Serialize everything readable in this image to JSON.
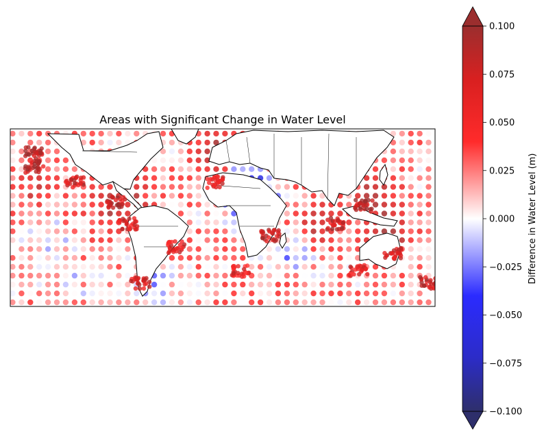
{
  "chart_data": {
    "type": "scatter",
    "title": "Areas with Significant Change in Water Level",
    "xlabel": "",
    "ylabel": "",
    "colorbar": {
      "label": "Difference in Water Level (m)",
      "range": [
        -0.1,
        0.1
      ],
      "extend": "both",
      "colormap": "seismic",
      "ticks": [
        0.1,
        0.075,
        0.05,
        0.025,
        0.0,
        -0.025,
        -0.05,
        -0.075,
        -0.1
      ],
      "tick_labels": [
        "0.100",
        "0.075",
        "0.050",
        "0.025",
        "0.000",
        "−0.025",
        "−0.050",
        "−0.075",
        "−0.100"
      ]
    },
    "map_extent": {
      "lon": [
        -180,
        180
      ],
      "lat": [
        -60,
        90
      ]
    },
    "grid_spacing_deg": 7.5,
    "grid": false,
    "regional_anomalies": [
      {
        "lon": 20,
        "lat": 35,
        "value": -0.06
      },
      {
        "lon": 10,
        "lat": 40,
        "value": -0.05
      },
      {
        "lon": 30,
        "lat": 33,
        "value": -0.05
      },
      {
        "lon": -60,
        "lat": -45,
        "value": -0.04
      },
      {
        "lon": -150,
        "lat": -5,
        "value": -0.03
      },
      {
        "lon": -130,
        "lat": -40,
        "value": -0.02
      },
      {
        "lon": 60,
        "lat": -15,
        "value": -0.04
      },
      {
        "lon": 40,
        "lat": -40,
        "value": 0.01
      },
      {
        "lon": 140,
        "lat": 5,
        "value": 0.08
      },
      {
        "lon": 130,
        "lat": 35,
        "value": 0.07
      },
      {
        "lon": 80,
        "lat": 10,
        "value": 0.06
      },
      {
        "lon": -95,
        "lat": 22,
        "value": 0.06
      },
      {
        "lon": -75,
        "lat": 35,
        "value": 0.05
      },
      {
        "lon": -160,
        "lat": 40,
        "value": 0.04
      },
      {
        "lon": -10,
        "lat": 60,
        "value": 0.04
      },
      {
        "lon": 0,
        "lat": 80,
        "value": 0.05
      }
    ],
    "coastal_anomalies": [
      {
        "lon": -160,
        "lat": 70,
        "value": 0.09
      },
      {
        "lon": -125,
        "lat": 45,
        "value": 0.07
      },
      {
        "lon": -90,
        "lat": 28,
        "value": 0.08
      },
      {
        "lon": -80,
        "lat": 10,
        "value": 0.07
      },
      {
        "lon": -40,
        "lat": -10,
        "value": 0.06
      },
      {
        "lon": -70,
        "lat": -40,
        "value": 0.07
      },
      {
        "lon": -5,
        "lat": 45,
        "value": 0.06
      },
      {
        "lon": 15,
        "lat": -30,
        "value": 0.06
      },
      {
        "lon": 40,
        "lat": 0,
        "value": 0.08
      },
      {
        "lon": 95,
        "lat": 10,
        "value": 0.08
      },
      {
        "lon": 120,
        "lat": 25,
        "value": 0.09
      },
      {
        "lon": 145,
        "lat": -15,
        "value": 0.07
      },
      {
        "lon": 115,
        "lat": -30,
        "value": 0.06
      },
      {
        "lon": 175,
        "lat": -40,
        "value": 0.08
      },
      {
        "lon": -160,
        "lat": 58,
        "value": 0.08
      }
    ]
  }
}
